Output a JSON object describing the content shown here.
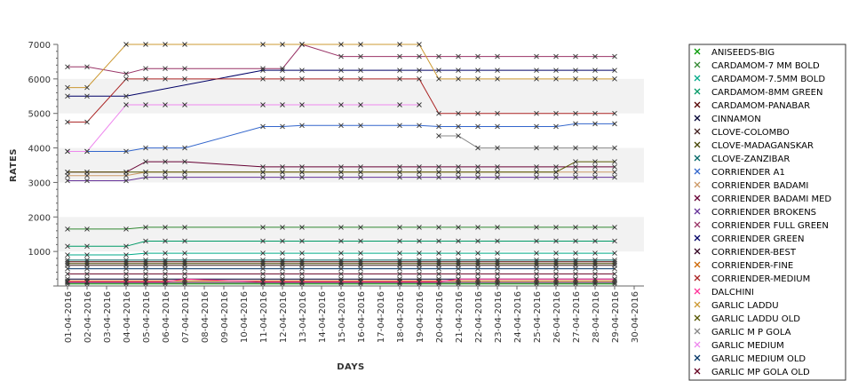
{
  "chart_data": {
    "type": "line",
    "xlabel": "DAYS",
    "ylabel": "RATES",
    "ylim": [
      0,
      7000
    ],
    "yticks": [
      1000,
      2000,
      3000,
      4000,
      5000,
      6000,
      7000
    ],
    "grid": "alternating horizontal bands",
    "legend_position": "right",
    "categories": [
      "01-04-2016",
      "02-04-2016",
      "03-04-2016",
      "04-04-2016",
      "05-04-2016",
      "06-04-2016",
      "07-04-2016",
      "08-04-2016",
      "09-04-2016",
      "10-04-2016",
      "11-04-2016",
      "12-04-2016",
      "13-04-2016",
      "14-04-2016",
      "15-04-2016",
      "16-04-2016",
      "17-04-2016",
      "18-04-2016",
      "19-04-2016",
      "20-04-2016",
      "21-04-2016",
      "22-04-2016",
      "23-04-2016",
      "24-04-2016",
      "25-04-2016",
      "26-04-2016",
      "27-04-2016",
      "28-04-2016",
      "29-04-2016",
      "30-04-2016"
    ],
    "series": [
      {
        "name": "ANISEEDS-BIG",
        "color": "#009900",
        "values": [
          60,
          60,
          null,
          60,
          60,
          60,
          60,
          null,
          null,
          null,
          60,
          60,
          60,
          null,
          60,
          60,
          null,
          60,
          60,
          60,
          60,
          60,
          60,
          null,
          60,
          60,
          60,
          60,
          60,
          null
        ]
      },
      {
        "name": "CARDAMOM-7 MM BOLD",
        "color": "#338833",
        "values": [
          1650,
          1650,
          null,
          1650,
          1700,
          1700,
          1700,
          null,
          null,
          null,
          1700,
          1700,
          1700,
          null,
          1700,
          1700,
          null,
          1700,
          1700,
          1700,
          1700,
          1700,
          1700,
          null,
          1700,
          1700,
          1700,
          1700,
          1700,
          null
        ]
      },
      {
        "name": "CARDAMOM-7.5MM BOLD",
        "color": "#00aa88",
        "values": [
          900,
          900,
          null,
          900,
          950,
          950,
          950,
          null,
          null,
          null,
          950,
          950,
          950,
          null,
          950,
          950,
          null,
          950,
          950,
          950,
          950,
          950,
          950,
          null,
          950,
          950,
          950,
          950,
          950,
          null
        ]
      },
      {
        "name": "CARDAMOM-8MM GREEN",
        "color": "#009966",
        "values": [
          1150,
          1150,
          null,
          1150,
          1300,
          1300,
          1300,
          null,
          null,
          null,
          1300,
          1300,
          1300,
          null,
          1300,
          1300,
          null,
          1300,
          1300,
          1300,
          1300,
          1300,
          1300,
          null,
          1300,
          1300,
          1300,
          1300,
          1300,
          null
        ]
      },
      {
        "name": "CARDAMOM-PANABAR",
        "color": "#550000",
        "values": [
          700,
          700,
          null,
          700,
          700,
          700,
          700,
          null,
          null,
          null,
          700,
          700,
          700,
          null,
          700,
          700,
          null,
          700,
          700,
          700,
          700,
          700,
          700,
          null,
          700,
          700,
          700,
          700,
          700,
          null
        ]
      },
      {
        "name": "CINNAMON",
        "color": "#000033",
        "values": [
          200,
          200,
          null,
          200,
          200,
          200,
          200,
          null,
          null,
          null,
          200,
          200,
          200,
          null,
          200,
          200,
          null,
          200,
          200,
          200,
          200,
          200,
          200,
          null,
          200,
          200,
          200,
          200,
          200,
          null
        ]
      },
      {
        "name": "CLOVE-COLOMBO",
        "color": "#442222",
        "values": [
          600,
          600,
          null,
          600,
          600,
          600,
          600,
          null,
          null,
          null,
          600,
          600,
          600,
          null,
          600,
          600,
          null,
          600,
          600,
          600,
          600,
          600,
          600,
          null,
          600,
          600,
          600,
          600,
          600,
          null
        ]
      },
      {
        "name": "CLOVE-MADAGANSKAR",
        "color": "#444400",
        "values": [
          650,
          650,
          null,
          650,
          650,
          650,
          650,
          null,
          null,
          null,
          650,
          650,
          650,
          null,
          650,
          650,
          null,
          650,
          650,
          650,
          650,
          650,
          650,
          null,
          650,
          650,
          650,
          650,
          650,
          null
        ]
      },
      {
        "name": "CLOVE-ZANZIBAR",
        "color": "#006666",
        "values": [
          750,
          750,
          null,
          750,
          750,
          750,
          750,
          null,
          null,
          null,
          750,
          750,
          750,
          null,
          750,
          750,
          null,
          750,
          750,
          750,
          750,
          750,
          750,
          null,
          750,
          750,
          750,
          750,
          750,
          null
        ]
      },
      {
        "name": "CORRIENDER A1",
        "color": "#3366cc",
        "values": [
          3900,
          3900,
          null,
          3900,
          4000,
          4000,
          4000,
          null,
          null,
          null,
          4620,
          4620,
          4650,
          null,
          4650,
          4650,
          null,
          4650,
          4650,
          4620,
          4620,
          4620,
          4620,
          null,
          4620,
          4620,
          4700,
          4700,
          4700,
          null
        ]
      },
      {
        "name": "CORRIENDER BADAMI",
        "color": "#cc9966",
        "values": [
          3200,
          3200,
          null,
          3200,
          3300,
          3300,
          3300,
          null,
          null,
          null,
          3300,
          3300,
          3300,
          null,
          3300,
          3300,
          null,
          3300,
          3300,
          3300,
          3300,
          3300,
          3300,
          null,
          3300,
          3300,
          3300,
          3300,
          3300,
          null
        ]
      },
      {
        "name": "CORRIENDER BADAMI MED",
        "color": "#660033",
        "values": [
          3300,
          3300,
          null,
          3300,
          3600,
          3600,
          3600,
          null,
          null,
          null,
          3450,
          3450,
          3450,
          null,
          3450,
          3450,
          null,
          3450,
          3450,
          3450,
          3450,
          3450,
          3450,
          null,
          3450,
          3450,
          3450,
          3450,
          3450,
          null
        ]
      },
      {
        "name": "CORRIENDER BROKENS",
        "color": "#663399",
        "values": [
          3050,
          3050,
          null,
          3050,
          3150,
          3150,
          3150,
          null,
          null,
          null,
          3150,
          3150,
          3150,
          null,
          3150,
          3150,
          null,
          3150,
          3150,
          3150,
          3150,
          3150,
          3150,
          null,
          3150,
          3150,
          3150,
          3150,
          3150,
          null
        ]
      },
      {
        "name": "CORRIENDER FULL GREEN",
        "color": "#993366",
        "values": [
          6350,
          6350,
          null,
          6150,
          6300,
          6300,
          6300,
          null,
          null,
          null,
          6300,
          6300,
          7000,
          null,
          6650,
          6650,
          null,
          6650,
          6650,
          6650,
          6650,
          6650,
          6650,
          null,
          6650,
          6650,
          6650,
          6650,
          6650,
          null
        ]
      },
      {
        "name": "CORRIENDER GREEN",
        "color": "#000066",
        "values": [
          5500,
          5500,
          null,
          5500,
          null,
          null,
          null,
          null,
          null,
          null,
          6250,
          6250,
          6250,
          null,
          6250,
          6250,
          null,
          6250,
          6250,
          6250,
          6250,
          6250,
          6250,
          null,
          6250,
          6250,
          6250,
          6250,
          6250,
          null
        ]
      },
      {
        "name": "CORRIENDER-BEST",
        "color": "#330022",
        "values": [
          100,
          100,
          null,
          100,
          100,
          100,
          100,
          null,
          null,
          null,
          100,
          100,
          100,
          null,
          100,
          100,
          null,
          100,
          100,
          100,
          100,
          100,
          100,
          null,
          100,
          100,
          100,
          100,
          100,
          null
        ]
      },
      {
        "name": "CORRIENDER-FINE",
        "color": "#cc6600",
        "values": [
          150,
          150,
          null,
          150,
          150,
          150,
          150,
          null,
          null,
          null,
          150,
          150,
          150,
          null,
          150,
          150,
          null,
          150,
          150,
          150,
          150,
          150,
          150,
          null,
          150,
          150,
          150,
          150,
          150,
          null
        ]
      },
      {
        "name": "CORRIENDER-MEDIUM",
        "color": "#aa2222",
        "values": [
          4750,
          4750,
          null,
          6000,
          6000,
          6000,
          6000,
          null,
          null,
          null,
          6000,
          6000,
          6000,
          null,
          6000,
          6000,
          null,
          6000,
          6000,
          5000,
          5000,
          5000,
          5000,
          null,
          5000,
          5000,
          5000,
          5000,
          5000,
          null
        ]
      },
      {
        "name": "DALCHINI",
        "color": "#ff3399",
        "values": [
          120,
          120,
          null,
          120,
          120,
          120,
          200,
          null,
          null,
          null,
          120,
          120,
          120,
          null,
          120,
          120,
          null,
          120,
          120,
          120,
          200,
          200,
          200,
          null,
          200,
          200,
          200,
          200,
          200,
          null
        ]
      },
      {
        "name": "GARLIC LADDU",
        "color": "#cc9933",
        "values": [
          5750,
          5750,
          null,
          7000,
          7000,
          7000,
          7000,
          null,
          null,
          null,
          7000,
          7000,
          7000,
          null,
          7000,
          7000,
          null,
          7000,
          7000,
          6000,
          6000,
          6000,
          6000,
          null,
          6000,
          6000,
          6000,
          6000,
          6000,
          null
        ]
      },
      {
        "name": "GARLIC LADDU OLD",
        "color": "#555500",
        "values": [
          3300,
          3300,
          null,
          3300,
          3300,
          3300,
          3300,
          null,
          null,
          null,
          3300,
          3300,
          3300,
          null,
          3300,
          3300,
          null,
          3300,
          3300,
          3300,
          3300,
          3300,
          3300,
          null,
          3300,
          3300,
          3600,
          3600,
          3600,
          null
        ]
      },
      {
        "name": "GARLIC M P GOLA",
        "color": "#888888",
        "values": [
          null,
          null,
          null,
          null,
          null,
          null,
          null,
          null,
          null,
          null,
          null,
          null,
          null,
          null,
          null,
          null,
          null,
          null,
          null,
          4350,
          4350,
          4000,
          4000,
          null,
          4000,
          4000,
          4000,
          4000,
          4000,
          null
        ]
      },
      {
        "name": "GARLIC MEDIUM",
        "color": "#ee88ee",
        "values": [
          3900,
          3900,
          null,
          5250,
          5250,
          5250,
          5250,
          null,
          null,
          null,
          5250,
          5250,
          5250,
          null,
          5250,
          5250,
          null,
          5250,
          5250,
          null,
          null,
          null,
          null,
          null,
          null,
          null,
          null,
          null,
          null,
          null
        ]
      },
      {
        "name": "GARLIC MEDIUM OLD",
        "color": "#003366",
        "values": [
          500,
          500,
          null,
          500,
          500,
          500,
          500,
          null,
          null,
          null,
          500,
          500,
          500,
          null,
          500,
          500,
          null,
          500,
          500,
          500,
          500,
          500,
          500,
          null,
          500,
          500,
          500,
          500,
          500,
          null
        ]
      },
      {
        "name": "GARLIC MP GOLA OLD",
        "color": "#660022",
        "values": [
          350,
          350,
          null,
          350,
          350,
          350,
          350,
          null,
          null,
          null,
          350,
          350,
          350,
          null,
          350,
          350,
          null,
          350,
          350,
          350,
          350,
          350,
          350,
          null,
          350,
          350,
          350,
          350,
          350,
          null
        ]
      }
    ]
  }
}
